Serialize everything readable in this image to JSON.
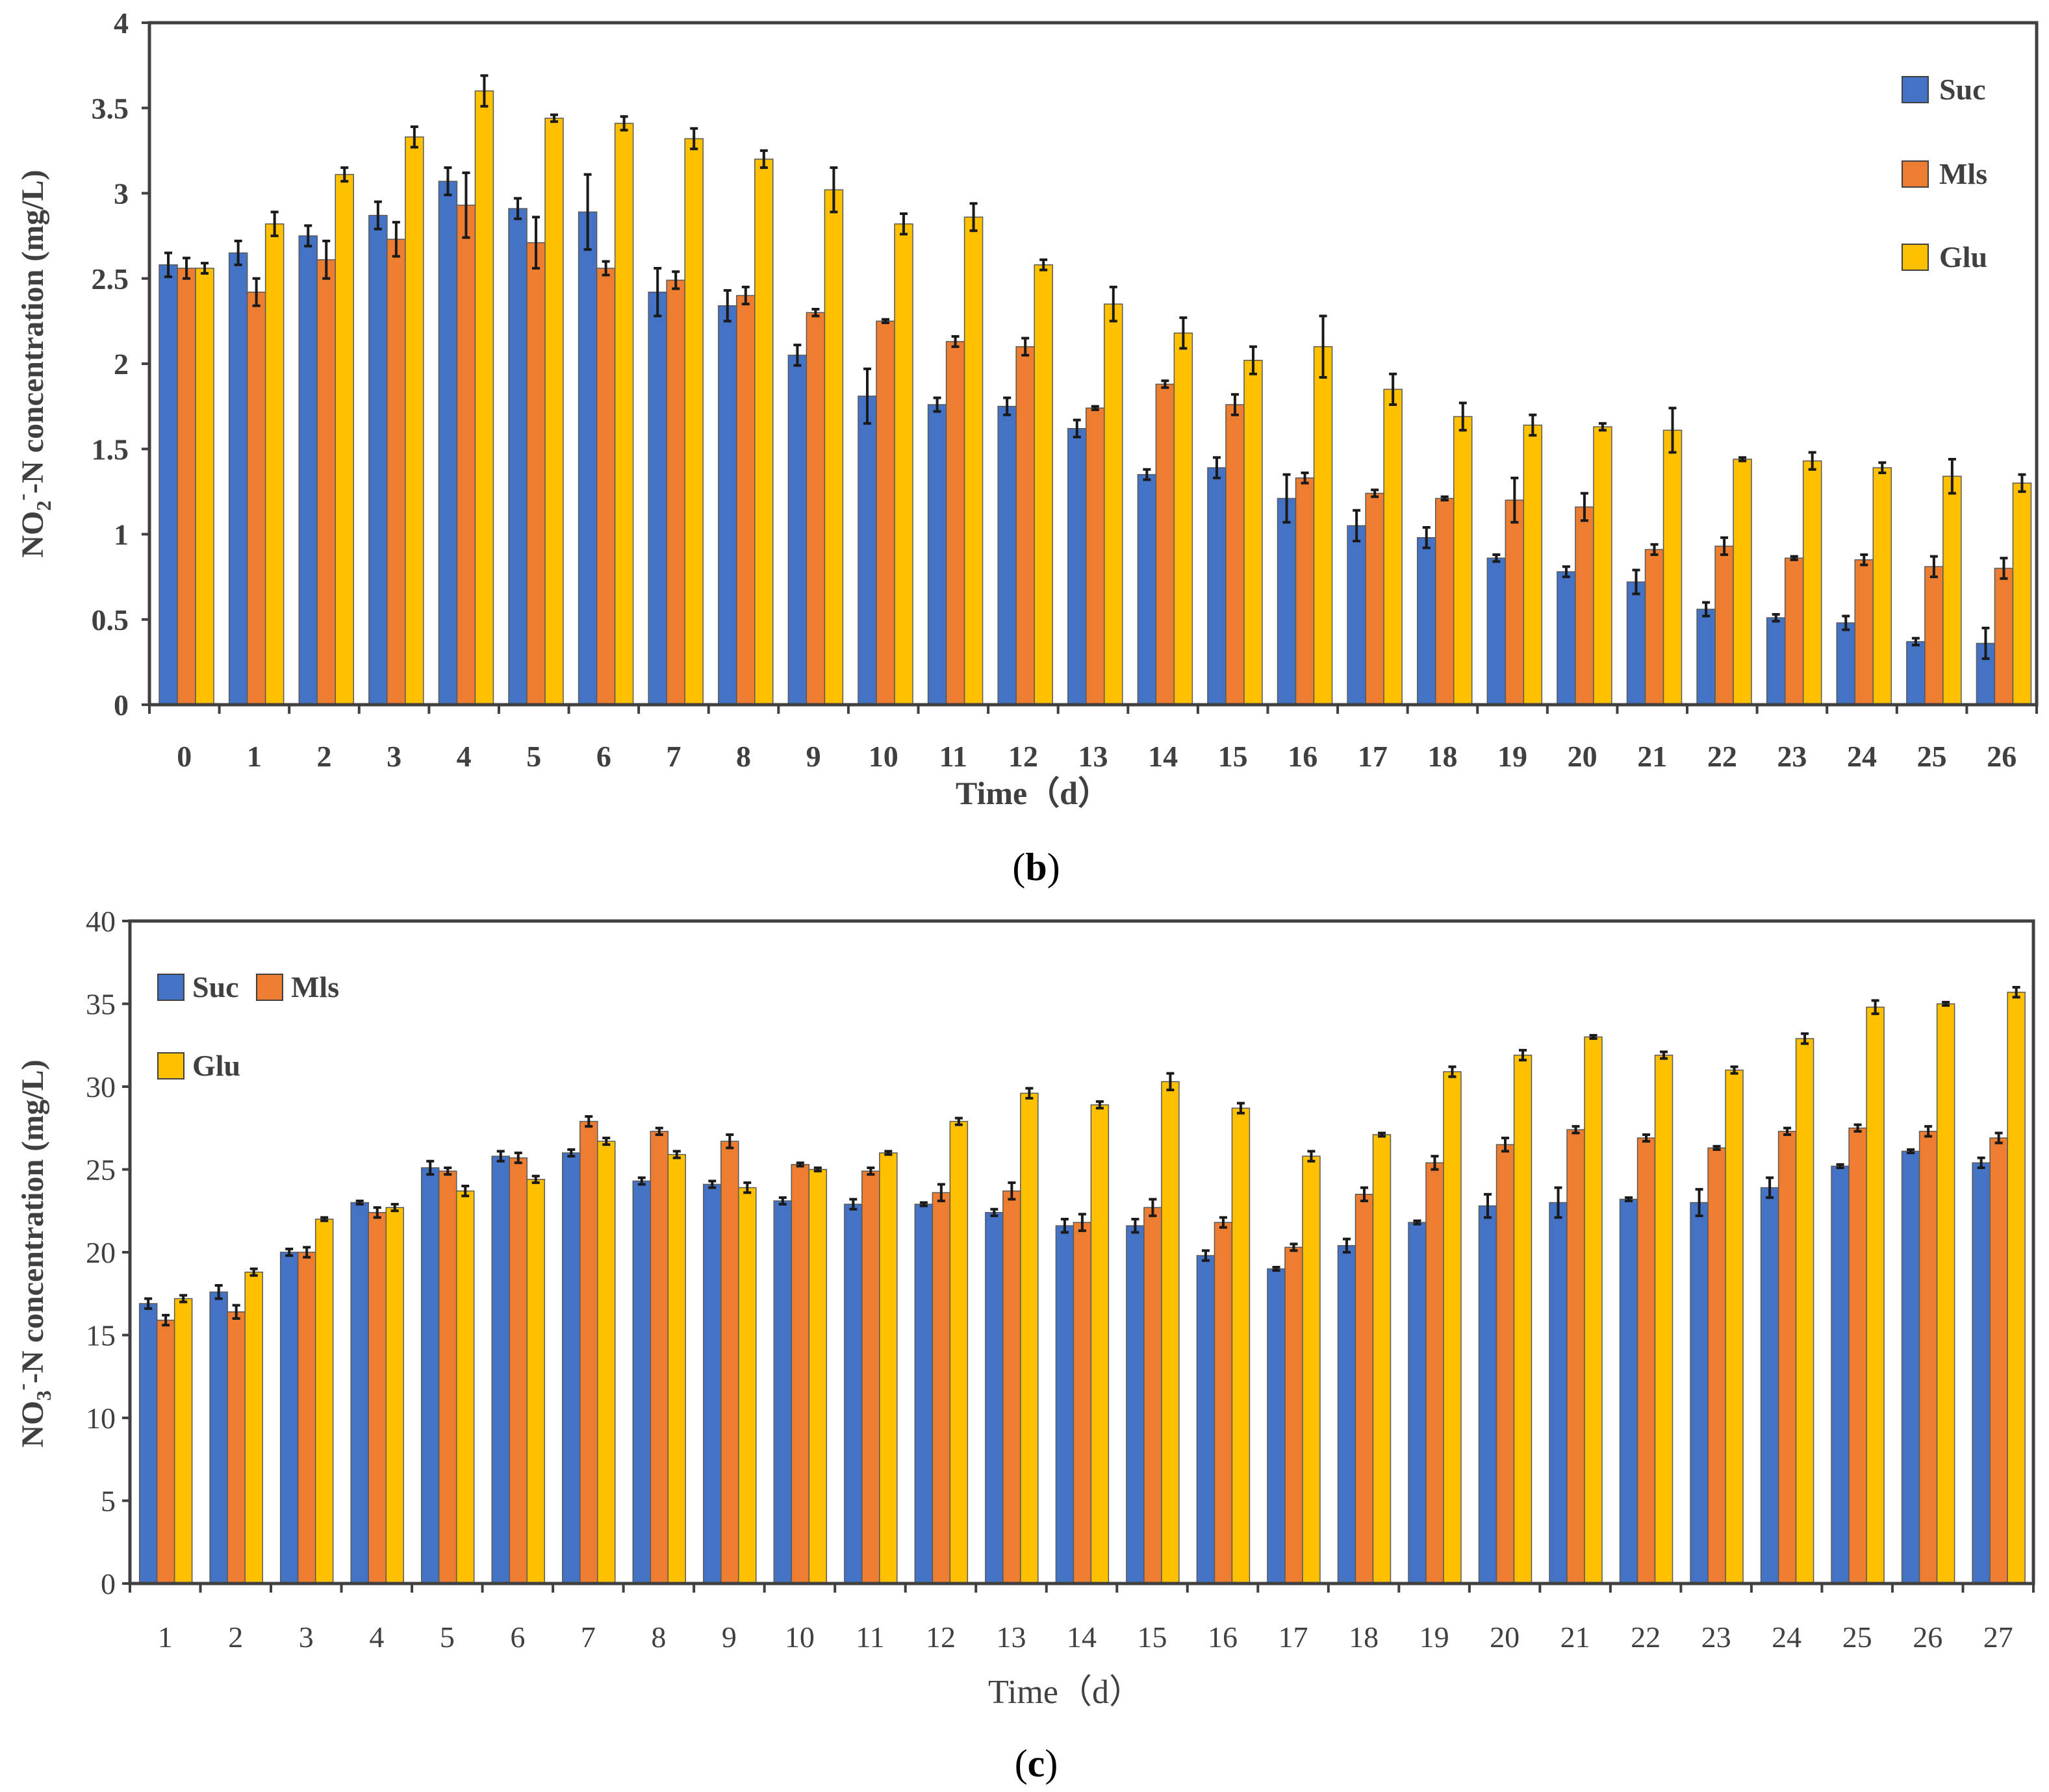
{
  "colors": {
    "Suc": "#4472C4",
    "Mls": "#ED7D31",
    "Glu": "#FFC000",
    "axis": "#404040",
    "errbar": "#1a1a1a"
  },
  "chart_data": [
    {
      "type": "bar",
      "panel_label": "b",
      "title": "",
      "xlabel": "Time（d）",
      "ylabel_main": "NO",
      "ylabel_sub": "2",
      "ylabel_sup": "-",
      "ylabel_rest": "-N concentration (mg/L)",
      "ylim": [
        0,
        4
      ],
      "yticks": [
        "0",
        "0.5",
        "1",
        "1.5",
        "2",
        "2.5",
        "3",
        "3.5",
        "4"
      ],
      "ytick_values": [
        0,
        0.5,
        1,
        1.5,
        2,
        2.5,
        3,
        3.5,
        4
      ],
      "legend_position": "top-right",
      "categories": [
        "0",
        "1",
        "2",
        "3",
        "4",
        "5",
        "6",
        "7",
        "8",
        "9",
        "10",
        "11",
        "12",
        "13",
        "14",
        "15",
        "16",
        "17",
        "18",
        "19",
        "20",
        "21",
        "22",
        "23",
        "24",
        "25",
        "26"
      ],
      "series": [
        {
          "name": "Suc",
          "values": [
            2.58,
            2.65,
            2.75,
            2.87,
            3.07,
            2.91,
            2.89,
            2.42,
            2.34,
            2.05,
            1.81,
            1.76,
            1.75,
            1.62,
            1.35,
            1.39,
            1.21,
            1.05,
            0.98,
            0.86,
            0.78,
            0.72,
            0.56,
            0.51,
            0.48,
            0.37,
            0.36
          ],
          "errors": [
            0.07,
            0.07,
            0.06,
            0.08,
            0.08,
            0.06,
            0.22,
            0.14,
            0.09,
            0.06,
            0.16,
            0.04,
            0.05,
            0.05,
            0.03,
            0.06,
            0.14,
            0.09,
            0.06,
            0.02,
            0.03,
            0.07,
            0.04,
            0.02,
            0.04,
            0.02,
            0.09
          ]
        },
        {
          "name": "Mls",
          "values": [
            2.56,
            2.42,
            2.61,
            2.73,
            2.93,
            2.71,
            2.56,
            2.49,
            2.4,
            2.3,
            2.25,
            2.13,
            2.1,
            1.74,
            1.88,
            1.76,
            1.33,
            1.24,
            1.21,
            1.2,
            1.16,
            0.91,
            0.93,
            0.86,
            0.85,
            0.81,
            0.8
          ],
          "errors": [
            0.06,
            0.08,
            0.11,
            0.1,
            0.19,
            0.15,
            0.04,
            0.05,
            0.05,
            0.02,
            0.01,
            0.03,
            0.05,
            0.01,
            0.02,
            0.06,
            0.03,
            0.02,
            0.01,
            0.13,
            0.08,
            0.03,
            0.05,
            0.01,
            0.03,
            0.06,
            0.06
          ]
        },
        {
          "name": "Glu",
          "values": [
            2.56,
            2.82,
            3.11,
            3.33,
            3.6,
            3.44,
            3.41,
            3.32,
            3.2,
            3.02,
            2.82,
            2.86,
            2.58,
            2.35,
            2.18,
            2.02,
            2.1,
            1.85,
            1.69,
            1.64,
            1.63,
            1.61,
            1.44,
            1.43,
            1.39,
            1.34,
            1.3
          ],
          "errors": [
            0.03,
            0.07,
            0.04,
            0.06,
            0.09,
            0.02,
            0.04,
            0.06,
            0.05,
            0.13,
            0.06,
            0.08,
            0.03,
            0.1,
            0.09,
            0.08,
            0.18,
            0.09,
            0.08,
            0.06,
            0.02,
            0.13,
            0.01,
            0.05,
            0.03,
            0.1,
            0.05
          ]
        }
      ]
    },
    {
      "type": "bar",
      "panel_label": "c",
      "title": "",
      "xlabel": "Time（d）",
      "ylabel_main": "NO",
      "ylabel_sub": "3",
      "ylabel_sup": "-",
      "ylabel_rest": "-N concentration (mg/L)",
      "ylim": [
        0,
        40
      ],
      "yticks": [
        "0",
        "5",
        "10",
        "15",
        "20",
        "25",
        "30",
        "35",
        "40"
      ],
      "ytick_values": [
        0,
        5,
        10,
        15,
        20,
        25,
        30,
        35,
        40
      ],
      "legend_position": "top-left",
      "categories": [
        "1",
        "2",
        "3",
        "4",
        "5",
        "6",
        "7",
        "8",
        "9",
        "10",
        "11",
        "12",
        "13",
        "14",
        "15",
        "16",
        "17",
        "18",
        "19",
        "20",
        "21",
        "22",
        "23",
        "24",
        "25",
        "26",
        "27"
      ],
      "series": [
        {
          "name": "Suc",
          "values": [
            16.9,
            17.6,
            20.0,
            23.0,
            25.1,
            25.8,
            26.0,
            24.3,
            24.1,
            23.1,
            22.9,
            22.9,
            22.4,
            21.6,
            21.6,
            19.8,
            19.0,
            20.4,
            21.8,
            22.8,
            23.0,
            23.2,
            23.0,
            23.9,
            25.2,
            26.1,
            25.4
          ],
          "errors": [
            0.3,
            0.4,
            0.2,
            0.1,
            0.4,
            0.3,
            0.2,
            0.2,
            0.2,
            0.2,
            0.3,
            0.1,
            0.2,
            0.4,
            0.4,
            0.3,
            0.1,
            0.4,
            0.1,
            0.7,
            0.9,
            0.1,
            0.8,
            0.6,
            0.1,
            0.1,
            0.3
          ]
        },
        {
          "name": "Mls",
          "values": [
            15.9,
            16.4,
            20.0,
            22.4,
            24.9,
            25.7,
            27.9,
            27.3,
            26.7,
            25.3,
            24.9,
            23.6,
            23.7,
            21.8,
            22.7,
            21.8,
            20.3,
            23.5,
            25.4,
            26.5,
            27.4,
            26.9,
            26.3,
            27.3,
            27.5,
            27.3,
            26.9
          ],
          "errors": [
            0.3,
            0.4,
            0.3,
            0.3,
            0.2,
            0.3,
            0.3,
            0.2,
            0.4,
            0.1,
            0.2,
            0.5,
            0.5,
            0.5,
            0.5,
            0.3,
            0.2,
            0.4,
            0.4,
            0.4,
            0.2,
            0.2,
            0.1,
            0.2,
            0.2,
            0.3,
            0.3
          ]
        },
        {
          "name": "Glu",
          "values": [
            17.2,
            18.8,
            22.0,
            22.7,
            23.7,
            24.4,
            26.7,
            25.9,
            23.9,
            25.0,
            26.0,
            27.9,
            29.6,
            28.9,
            30.3,
            28.7,
            25.8,
            27.1,
            30.9,
            31.9,
            33.0,
            31.9,
            31.0,
            32.9,
            34.8,
            35.0,
            35.7
          ],
          "errors": [
            0.2,
            0.2,
            0.1,
            0.2,
            0.3,
            0.2,
            0.2,
            0.2,
            0.3,
            0.1,
            0.1,
            0.2,
            0.3,
            0.2,
            0.5,
            0.3,
            0.3,
            0.1,
            0.3,
            0.3,
            0.1,
            0.2,
            0.2,
            0.3,
            0.4,
            0.1,
            0.3
          ]
        }
      ]
    }
  ]
}
